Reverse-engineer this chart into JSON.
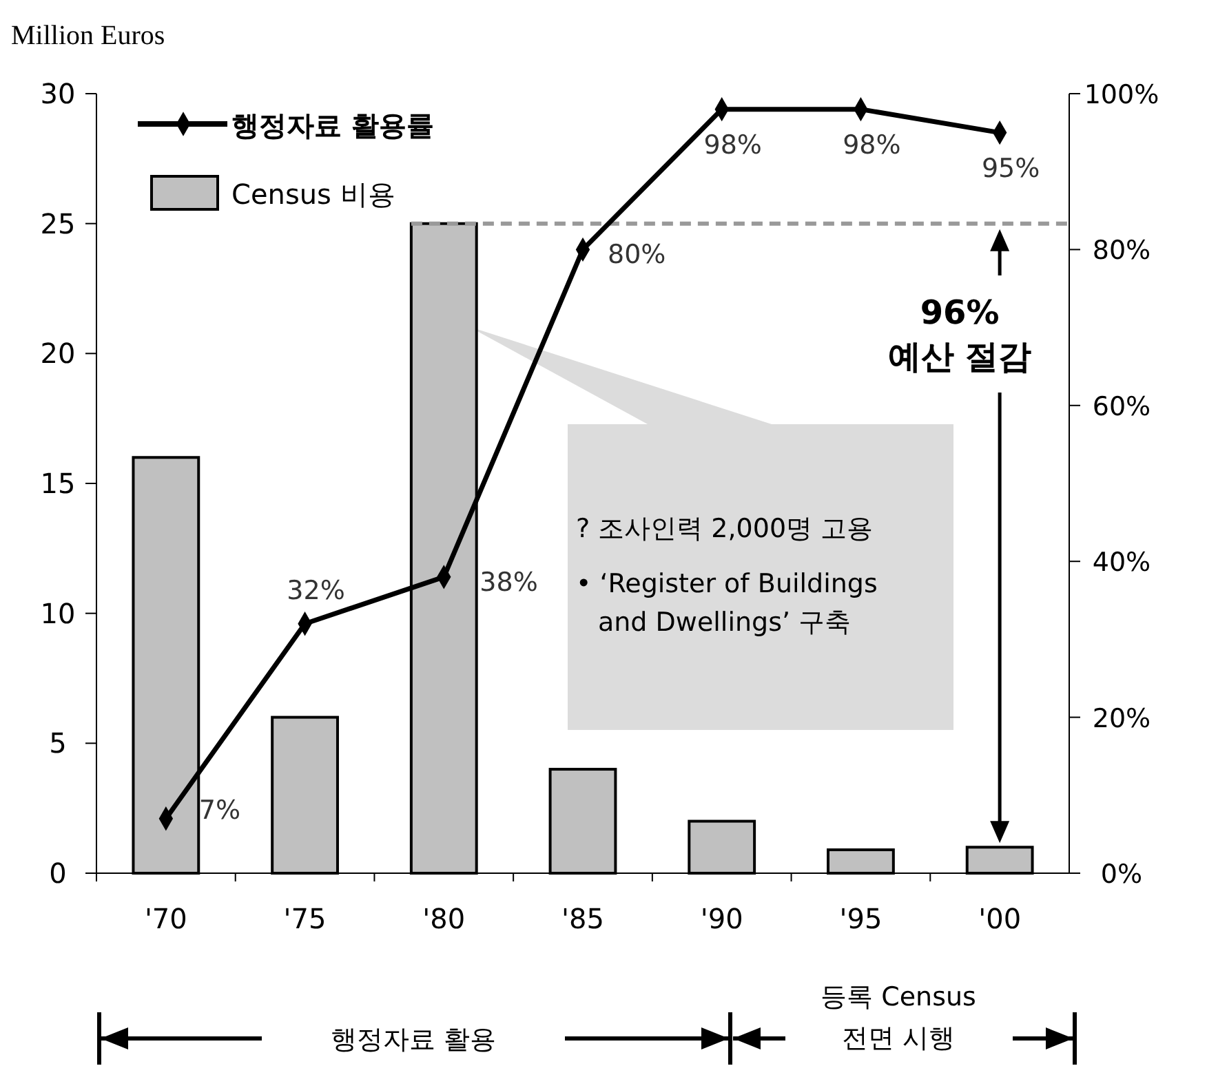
{
  "chart_data": {
    "type": "bar",
    "ylabel": "Million Euros",
    "categories": [
      "'70",
      "'75",
      "'80",
      "'85",
      "'90",
      "'95",
      "'00"
    ],
    "series": [
      {
        "name": "행정자료 활용률",
        "type": "line",
        "axis": "y2",
        "color": "#000000",
        "marker": "diamond",
        "values": [
          7,
          32,
          38,
          80,
          98,
          98,
          95
        ],
        "value_labels": [
          "7%",
          "32%",
          "38%",
          "80%",
          "98%",
          "98%",
          "95%"
        ]
      },
      {
        "name": "Census 비용",
        "color": "#c0c0c0",
        "values": [
          16,
          6,
          25,
          4,
          2,
          0.9,
          1
        ]
      }
    ],
    "ylim": [
      0,
      30
    ],
    "yticks": [
      0,
      5,
      10,
      15,
      20,
      25,
      30
    ],
    "y2lim": [
      0,
      100
    ],
    "y2ticks": [
      {
        "value": 0,
        "label": "0%"
      },
      {
        "value": 20,
        "label": "20%"
      },
      {
        "value": 40,
        "label": "40%"
      },
      {
        "value": 60,
        "label": "60%"
      },
      {
        "value": 80,
        "label": "80%"
      },
      {
        "value": 100,
        "label": "100%"
      }
    ],
    "ref_lines": [
      {
        "axis": "y",
        "value": 25,
        "color": "#999999",
        "line_style": "dashed"
      }
    ],
    "legend": "top left",
    "grid": false,
    "annotations": [
      "96%\n예산 절감",
      "? 조사인력 2,000명 고용",
      "• ‘Register of Buildings\nand Dwellings’ 구축",
      "행정자료 활용",
      "등록 Census\n전면 시행"
    ]
  }
}
